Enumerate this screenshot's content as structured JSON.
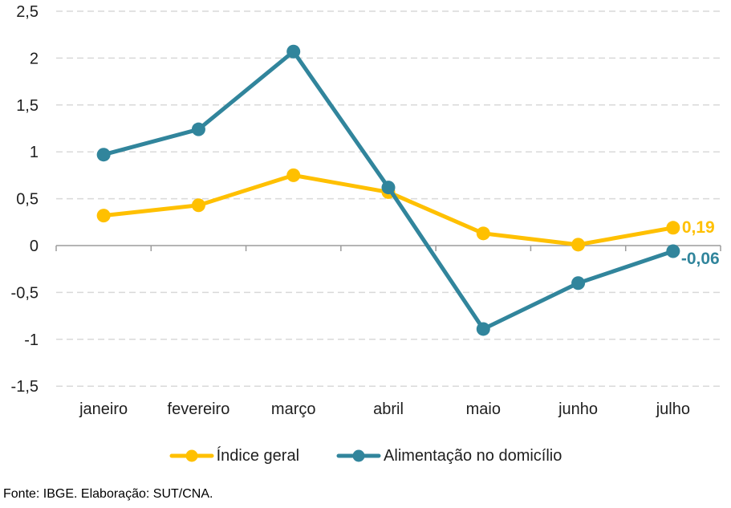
{
  "chart_data": {
    "type": "line",
    "categories": [
      "janeiro",
      "fevereiro",
      "março",
      "abril",
      "maio",
      "junho",
      "julho"
    ],
    "series": [
      {
        "name": "Índice geral",
        "color": "#FFC000",
        "values": [
          0.32,
          0.43,
          0.75,
          0.57,
          0.13,
          0.01,
          0.19
        ],
        "end_label": "0,19",
        "label_dx": 11,
        "label_dy": 6
      },
      {
        "name": "Alimentação no domicílio",
        "color": "#31859C",
        "values": [
          0.97,
          1.24,
          2.07,
          0.62,
          -0.89,
          -0.4,
          -0.06
        ],
        "end_label": "-0,06",
        "label_dx": 10,
        "label_dy": 16
      }
    ],
    "title": "",
    "xlabel": "",
    "ylabel": "",
    "ylim": [
      -1.5,
      2.5
    ],
    "ytick_step": 0.5,
    "ytick_labels": [
      "-1,5",
      "-1",
      "-0,5",
      "0",
      "0,5",
      "1",
      "1,5",
      "2",
      "2,5"
    ],
    "grid": "horizontal-dashed",
    "legend_position": "bottom"
  },
  "colors": {
    "grid": "#D9D9D9",
    "axis": "#9C9C9C",
    "text": "#1f1f1f"
  },
  "footer": {
    "source_note": "Fonte: IBGE. Elaboração: SUT/CNA."
  }
}
